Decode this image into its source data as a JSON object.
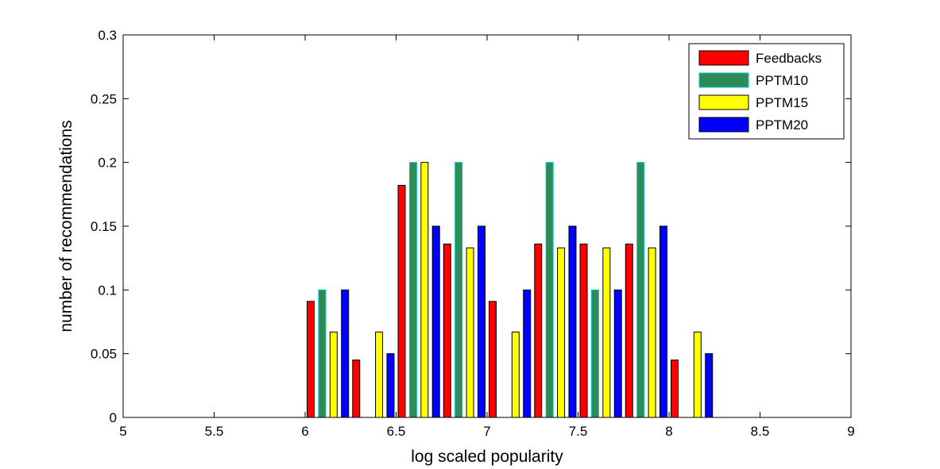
{
  "chart_data": {
    "type": "bar",
    "title": "",
    "xlabel": "log scaled popularity",
    "ylabel": "number of recommendations",
    "xlim": [
      5,
      9
    ],
    "ylim": [
      0,
      0.3
    ],
    "x_ticks": [
      "5",
      "5.5",
      "6",
      "6.5",
      "7",
      "7.5",
      "8",
      "8.5",
      "9"
    ],
    "y_ticks": [
      "0",
      "0.05",
      "0.1",
      "0.15",
      "0.2",
      "0.25",
      "0.3"
    ],
    "x": [
      5.125,
      5.375,
      5.625,
      5.875,
      6.125,
      6.375,
      6.625,
      6.875,
      7.125,
      7.375,
      7.625,
      7.875,
      8.125,
      8.375,
      8.625,
      8.875
    ],
    "series": [
      {
        "name": "Feedbacks",
        "color": "#ff0000",
        "values": [
          0,
          0,
          0,
          0,
          0.091,
          0.045,
          0.182,
          0.136,
          0.091,
          0.136,
          0.136,
          0.136,
          0.045,
          0,
          0,
          0
        ]
      },
      {
        "name": "PPTM10",
        "color": "#2e8b57",
        "values": [
          0,
          0,
          0,
          0,
          0.1,
          0,
          0.2,
          0.2,
          0,
          0.2,
          0.1,
          0.2,
          0,
          0,
          0,
          0
        ]
      },
      {
        "name": "PPTM15",
        "color": "#ffff00",
        "values": [
          0,
          0,
          0,
          0,
          0.067,
          0.067,
          0.2,
          0.133,
          0.067,
          0.133,
          0.133,
          0.133,
          0.067,
          0,
          0,
          0
        ]
      },
      {
        "name": "PPTM20",
        "color": "#0000ff",
        "values": [
          0,
          0,
          0,
          0,
          0.1,
          0.05,
          0.15,
          0.15,
          0.1,
          0.15,
          0.1,
          0.15,
          0.05,
          0,
          0,
          0
        ]
      }
    ],
    "legend_position": "top-right",
    "grid": false
  }
}
